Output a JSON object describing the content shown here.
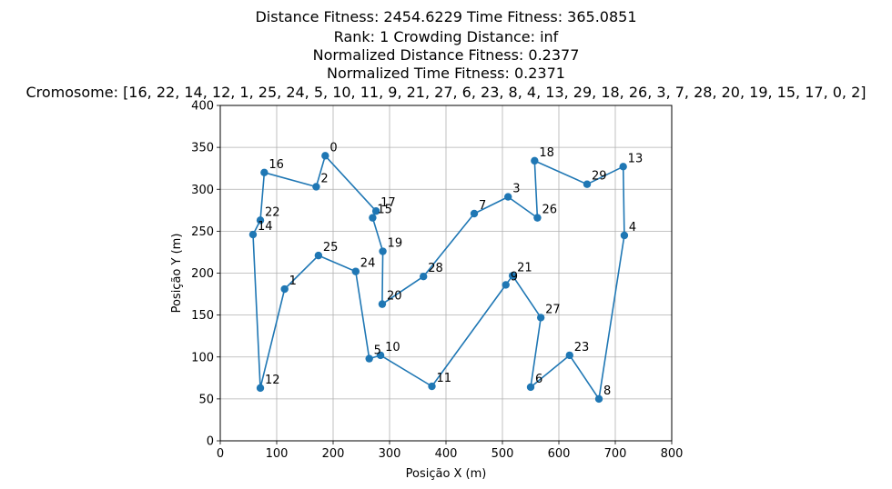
{
  "chart_data": {
    "type": "line",
    "title_lines": [
      "Distance Fitness: 2454.6229    Time Fitness: 365.0851",
      "Rank: 1    Crowding Distance: inf",
      "Normalized Distance Fitness: 0.2377",
      "Normalized Time Fitness: 0.2371",
      "Cromosome: [16, 22, 14, 12, 1, 25, 24, 5, 10, 11, 9, 21, 27, 6, 23, 8, 4, 13, 29, 18, 26, 3, 7, 28, 20, 19, 15, 17, 0, 2]"
    ],
    "xlabel": "Posição X (m)",
    "ylabel": "Posição Y (m)",
    "xlim": [
      0,
      800
    ],
    "ylim": [
      0,
      400
    ],
    "xticks": [
      0,
      100,
      200,
      300,
      400,
      500,
      600,
      700,
      800
    ],
    "yticks": [
      0,
      50,
      100,
      150,
      200,
      250,
      300,
      350,
      400
    ],
    "grid": true,
    "line_color": "#1f77b4",
    "marker": "circle",
    "route": [
      16,
      22,
      14,
      12,
      1,
      25,
      24,
      5,
      10,
      11,
      9,
      21,
      27,
      6,
      23,
      8,
      4,
      13,
      29,
      18,
      26,
      3,
      7,
      28,
      20,
      19,
      15,
      17,
      0,
      2
    ],
    "closed": true,
    "points": [
      {
        "id": "0",
        "x": 186,
        "y": 340
      },
      {
        "id": "1",
        "x": 114,
        "y": 181
      },
      {
        "id": "2",
        "x": 170,
        "y": 303
      },
      {
        "id": "3",
        "x": 510,
        "y": 291
      },
      {
        "id": "4",
        "x": 716,
        "y": 245
      },
      {
        "id": "5",
        "x": 264,
        "y": 98
      },
      {
        "id": "6",
        "x": 550,
        "y": 64
      },
      {
        "id": "7",
        "x": 450,
        "y": 271
      },
      {
        "id": "8",
        "x": 671,
        "y": 50
      },
      {
        "id": "9",
        "x": 506,
        "y": 186
      },
      {
        "id": "10",
        "x": 284,
        "y": 102
      },
      {
        "id": "11",
        "x": 375,
        "y": 65
      },
      {
        "id": "12",
        "x": 71,
        "y": 63
      },
      {
        "id": "13",
        "x": 714,
        "y": 327
      },
      {
        "id": "14",
        "x": 58,
        "y": 246
      },
      {
        "id": "15",
        "x": 270,
        "y": 266
      },
      {
        "id": "16",
        "x": 78,
        "y": 320
      },
      {
        "id": "17",
        "x": 276,
        "y": 274
      },
      {
        "id": "18",
        "x": 557,
        "y": 334
      },
      {
        "id": "19",
        "x": 288,
        "y": 226
      },
      {
        "id": "20",
        "x": 287,
        "y": 163
      },
      {
        "id": "21",
        "x": 518,
        "y": 197
      },
      {
        "id": "22",
        "x": 71,
        "y": 263
      },
      {
        "id": "23",
        "x": 619,
        "y": 102
      },
      {
        "id": "24",
        "x": 240,
        "y": 202
      },
      {
        "id": "25",
        "x": 174,
        "y": 221
      },
      {
        "id": "26",
        "x": 562,
        "y": 266
      },
      {
        "id": "27",
        "x": 568,
        "y": 147
      },
      {
        "id": "28",
        "x": 360,
        "y": 196
      },
      {
        "id": "29",
        "x": 650,
        "y": 306
      }
    ]
  }
}
